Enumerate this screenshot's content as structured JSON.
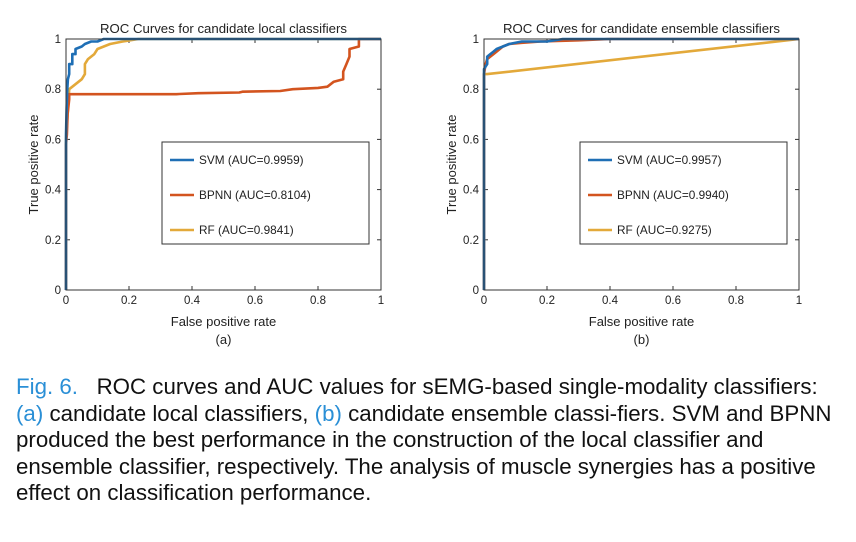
{
  "chart_data": [
    {
      "type": "line",
      "title": "ROC Curves for candidate local classifiers",
      "xlabel": "False positive rate",
      "ylabel": "True positive rate",
      "sublabel": "(a)",
      "xlim": [
        0,
        1
      ],
      "ylim": [
        0,
        1
      ],
      "xticks": [
        "0",
        "0.2",
        "0.4",
        "0.6",
        "0.8",
        "1"
      ],
      "yticks": [
        "0",
        "0.2",
        "0.4",
        "0.6",
        "0.8",
        "1"
      ],
      "grid": false,
      "legend_position": "center-right",
      "series": [
        {
          "name": "SVM (AUC=0.9959)",
          "color": "#1f6fb5",
          "points": [
            [
              0,
              0
            ],
            [
              0,
              0.62
            ],
            [
              0.002,
              0.72
            ],
            [
              0.004,
              0.8
            ],
            [
              0.006,
              0.84
            ],
            [
              0.01,
              0.86
            ],
            [
              0.01,
              0.9
            ],
            [
              0.02,
              0.9
            ],
            [
              0.02,
              0.94
            ],
            [
              0.03,
              0.94
            ],
            [
              0.03,
              0.96
            ],
            [
              0.05,
              0.97
            ],
            [
              0.06,
              0.98
            ],
            [
              0.08,
              0.99
            ],
            [
              0.1,
              0.99
            ],
            [
              0.12,
              1.0
            ],
            [
              0.18,
              1.0
            ],
            [
              1,
              1
            ]
          ]
        },
        {
          "name": "BPNN (AUC=0.8104)",
          "color": "#d3541f",
          "points": [
            [
              0,
              0
            ],
            [
              0,
              0.58
            ],
            [
              0.003,
              0.62
            ],
            [
              0.005,
              0.7
            ],
            [
              0.01,
              0.76
            ],
            [
              0.01,
              0.78
            ],
            [
              0.2,
              0.78
            ],
            [
              0.35,
              0.78
            ],
            [
              0.36,
              0.781
            ],
            [
              0.42,
              0.784
            ],
            [
              0.55,
              0.787
            ],
            [
              0.56,
              0.79
            ],
            [
              0.68,
              0.793
            ],
            [
              0.72,
              0.8
            ],
            [
              0.8,
              0.805
            ],
            [
              0.83,
              0.81
            ],
            [
              0.84,
              0.82
            ],
            [
              0.85,
              0.83
            ],
            [
              0.88,
              0.84
            ],
            [
              0.88,
              0.87
            ],
            [
              0.89,
              0.9
            ],
            [
              0.9,
              0.93
            ],
            [
              0.9,
              0.96
            ],
            [
              0.93,
              0.97
            ],
            [
              0.93,
              1.0
            ],
            [
              1,
              1
            ]
          ]
        },
        {
          "name": "RF (AUC=0.9841)",
          "color": "#e3a93a",
          "points": [
            [
              0,
              0
            ],
            [
              0,
              0.6
            ],
            [
              0.005,
              0.7
            ],
            [
              0.01,
              0.8
            ],
            [
              0.03,
              0.82
            ],
            [
              0.05,
              0.84
            ],
            [
              0.06,
              0.86
            ],
            [
              0.06,
              0.9
            ],
            [
              0.07,
              0.92
            ],
            [
              0.09,
              0.94
            ],
            [
              0.1,
              0.96
            ],
            [
              0.14,
              0.98
            ],
            [
              0.18,
              0.99
            ],
            [
              0.23,
              1.0
            ],
            [
              1,
              1
            ]
          ]
        }
      ]
    },
    {
      "type": "line",
      "title": "ROC Curves for candidate ensemble classifiers",
      "xlabel": "False positive rate",
      "ylabel": "True positive rate",
      "sublabel": "(b)",
      "xlim": [
        0,
        1
      ],
      "ylim": [
        0,
        1
      ],
      "xticks": [
        "0",
        "0.2",
        "0.4",
        "0.6",
        "0.8",
        "1"
      ],
      "yticks": [
        "0",
        "0.2",
        "0.4",
        "0.6",
        "0.8",
        "1"
      ],
      "grid": false,
      "legend_position": "center-right",
      "series": [
        {
          "name": "SVM (AUC=0.9957)",
          "color": "#1f6fb5",
          "points": [
            [
              0,
              0
            ],
            [
              0,
              0.88
            ],
            [
              0.01,
              0.9
            ],
            [
              0.01,
              0.93
            ],
            [
              0.02,
              0.94
            ],
            [
              0.03,
              0.95
            ],
            [
              0.04,
              0.96
            ],
            [
              0.06,
              0.97
            ],
            [
              0.08,
              0.98
            ],
            [
              0.12,
              0.99
            ],
            [
              0.2,
              0.99
            ],
            [
              0.25,
              1.0
            ],
            [
              1,
              1
            ]
          ]
        },
        {
          "name": "BPNN (AUC=0.9940)",
          "color": "#d3541f",
          "points": [
            [
              0,
              0
            ],
            [
              0,
              0.86
            ],
            [
              0.005,
              0.9
            ],
            [
              0.01,
              0.92
            ],
            [
              0.02,
              0.93
            ],
            [
              0.03,
              0.94
            ],
            [
              0.04,
              0.95
            ],
            [
              0.06,
              0.97
            ],
            [
              0.08,
              0.98
            ],
            [
              0.12,
              0.985
            ],
            [
              0.18,
              0.99
            ],
            [
              0.3,
              0.995
            ],
            [
              0.4,
              1.0
            ],
            [
              1,
              1
            ]
          ]
        },
        {
          "name": "RF (AUC=0.9275)",
          "color": "#e3a93a",
          "points": [
            [
              0,
              0
            ],
            [
              0,
              0.86
            ],
            [
              0.01,
              0.86
            ],
            [
              1,
              1
            ]
          ]
        }
      ]
    }
  ],
  "caption": {
    "fig_label": "Fig. 6.",
    "text_1": "ROC curves and AUC values for sEMG-based single-modality classifiers: ",
    "ref_a": "(a)",
    "text_2": " candidate local classifiers, ",
    "ref_b": "(b)",
    "text_3": " candidate ensemble classi-fiers. SVM and BPNN produced the best performance in the construction of the local classifier and ensemble classifier, respectively. The analysis of muscle synergies has a positive effect on classification performance."
  }
}
